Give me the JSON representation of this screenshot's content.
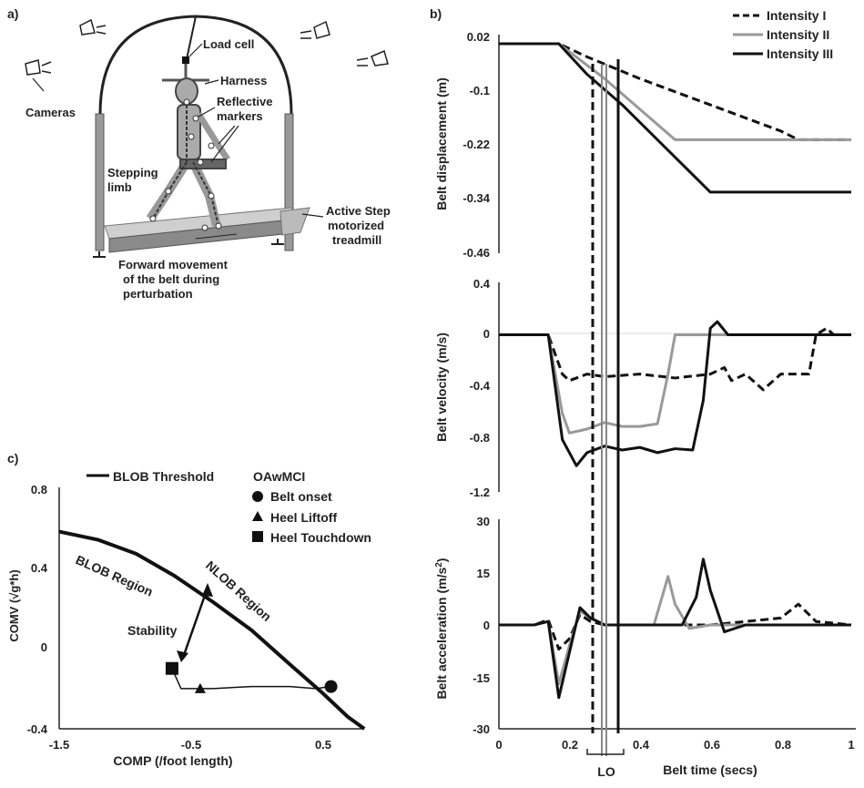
{
  "panel_labels": {
    "a": "a)",
    "b": "b)",
    "c": "c)"
  },
  "panel_a": {
    "labels": {
      "load_cell": "Load cell",
      "harness": "Harness",
      "reflective_1": "Reflective",
      "reflective_2": "markers",
      "cameras": "Cameras",
      "stepping_1": "Stepping",
      "stepping_2": "limb",
      "active_1": "Active Step",
      "active_2": "motorized",
      "active_3": "treadmill",
      "forward_1": "Forward movement",
      "forward_2": "of the belt during",
      "forward_3": "perturbation"
    },
    "icons": [
      "camera-icon",
      "camera-icon",
      "camera-icon",
      "camera-icon",
      "camera-icon",
      "harness-frame-icon",
      "human-figure-icon",
      "treadmill-icon"
    ]
  },
  "panel_b": {
    "legend": [
      "Intensity I",
      "Intensity II",
      "Intensity III"
    ],
    "x_label": "Belt time (secs)",
    "x_ticks": [
      "0",
      "0.2",
      "0.4",
      "0.6",
      "0.8",
      "1"
    ],
    "lo_label": "LO",
    "displacement": {
      "ylabel": "Belt displacement (m)",
      "ticks": [
        "0.02",
        "-0.1",
        "-0.22",
        "-0.34",
        "-0.46"
      ]
    },
    "velocity": {
      "ylabel": "Belt velocity (m/s)",
      "ticks": [
        "0.4",
        "0",
        "-0.4",
        "-0.8",
        "-1.2"
      ]
    },
    "acceleration": {
      "ylabel_main": "Belt acceleration (m/s",
      "ylabel_sup": "2",
      "ylabel_end": ")",
      "ticks": [
        "30",
        "15",
        "0",
        "-15",
        "-30"
      ]
    }
  },
  "panel_c": {
    "legend_threshold": "BLOB Threshold",
    "group_title": "OAwMCI",
    "markers": [
      "Belt onset",
      "Heel Liftoff",
      "Heel Touchdown"
    ],
    "region_blob": "BLOB Region",
    "region_nlob": "NLOB Region",
    "stability": "Stability",
    "ylabel": "COMV (√g*h)",
    "xlabel": "COMP (/foot length)",
    "y_ticks": [
      "0.8",
      "0.4",
      "0",
      "-0.4"
    ],
    "x_ticks": [
      "-1.5",
      "-0.5",
      "0.5"
    ]
  },
  "colors": {
    "intensity_1": "#111111",
    "intensity_2": "#999999",
    "intensity_3": "#111111",
    "text": "#222222"
  },
  "chart_data": [
    {
      "type": "line",
      "ylabel": "Belt displacement (m)",
      "xlim": [
        0,
        1
      ],
      "ylim": [
        -0.46,
        0.02
      ],
      "series": [
        {
          "name": "Intensity I",
          "style": "dashed",
          "x": [
            0,
            0.17,
            0.25,
            0.4,
            0.6,
            0.8,
            0.85,
            1.0
          ],
          "values": [
            0.02,
            0.02,
            -0.01,
            -0.06,
            -0.12,
            -0.18,
            -0.2,
            -0.2
          ]
        },
        {
          "name": "Intensity II",
          "style": "solid-gray",
          "x": [
            0,
            0.17,
            0.3,
            0.4,
            0.5,
            0.6,
            0.8,
            1.0
          ],
          "values": [
            0.02,
            0.02,
            -0.06,
            -0.13,
            -0.2,
            -0.2,
            -0.2,
            -0.2
          ]
        },
        {
          "name": "Intensity III",
          "style": "solid-black",
          "x": [
            0,
            0.17,
            0.25,
            0.35,
            0.5,
            0.6,
            0.8,
            1.0
          ],
          "values": [
            0.02,
            0.02,
            -0.05,
            -0.12,
            -0.24,
            -0.32,
            -0.32,
            -0.32
          ]
        }
      ]
    },
    {
      "type": "line",
      "ylabel": "Belt velocity (m/s)",
      "xlim": [
        0,
        1
      ],
      "ylim": [
        -1.2,
        0.4
      ],
      "series": [
        {
          "name": "Intensity I",
          "style": "dashed",
          "x": [
            0,
            0.14,
            0.18,
            0.2,
            0.25,
            0.3,
            0.4,
            0.5,
            0.6,
            0.64,
            0.66,
            0.7,
            0.75,
            0.8,
            0.85,
            0.88,
            0.9,
            0.93,
            0.95,
            1.0
          ],
          "values": [
            0,
            0,
            -0.3,
            -0.35,
            -0.3,
            -0.32,
            -0.3,
            -0.33,
            -0.3,
            -0.25,
            -0.35,
            -0.3,
            -0.42,
            -0.3,
            -0.3,
            -0.3,
            0,
            0.05,
            0,
            0
          ]
        },
        {
          "name": "Intensity II",
          "style": "solid-gray",
          "x": [
            0,
            0.14,
            0.18,
            0.2,
            0.25,
            0.3,
            0.35,
            0.4,
            0.45,
            0.48,
            0.5,
            0.52,
            0.55,
            0.6,
            0.8,
            1.0
          ],
          "values": [
            0,
            0,
            -0.6,
            -0.75,
            -0.72,
            -0.67,
            -0.7,
            -0.7,
            -0.68,
            -0.3,
            0,
            0,
            0,
            0,
            0,
            0
          ]
        },
        {
          "name": "Intensity III",
          "style": "solid-black",
          "x": [
            0,
            0.14,
            0.18,
            0.22,
            0.25,
            0.3,
            0.35,
            0.4,
            0.45,
            0.5,
            0.55,
            0.58,
            0.6,
            0.62,
            0.65,
            0.8,
            1.0
          ],
          "values": [
            0,
            0,
            -0.8,
            -1.0,
            -0.9,
            -0.85,
            -0.88,
            -0.86,
            -0.9,
            -0.87,
            -0.88,
            -0.5,
            0.05,
            0.1,
            0,
            0,
            0
          ]
        }
      ]
    },
    {
      "type": "line",
      "ylabel": "Belt acceleration (m/s2)",
      "xlim": [
        0,
        1
      ],
      "ylim": [
        -30,
        30
      ],
      "series": [
        {
          "name": "Intensity I",
          "style": "dashed",
          "x": [
            0,
            0.1,
            0.14,
            0.17,
            0.2,
            0.23,
            0.26,
            0.3,
            0.45,
            0.6,
            0.7,
            0.8,
            0.85,
            0.9,
            1.0
          ],
          "values": [
            0,
            0,
            1.5,
            -7,
            -4,
            3,
            1,
            0,
            0,
            0,
            1,
            2,
            6,
            1,
            0
          ]
        },
        {
          "name": "Intensity II",
          "style": "solid-gray",
          "x": [
            0,
            0.1,
            0.14,
            0.17,
            0.2,
            0.23,
            0.26,
            0.3,
            0.44,
            0.48,
            0.5,
            0.54,
            0.6,
            0.7,
            1.0
          ],
          "values": [
            0,
            0,
            1,
            -17,
            -6,
            4,
            2,
            0,
            0,
            14,
            6,
            -1,
            0,
            0,
            0
          ]
        },
        {
          "name": "Intensity III",
          "style": "solid-black",
          "x": [
            0,
            0.1,
            0.14,
            0.17,
            0.2,
            0.23,
            0.26,
            0.3,
            0.52,
            0.56,
            0.58,
            0.6,
            0.64,
            0.7,
            1.0
          ],
          "values": [
            0,
            0,
            1,
            -21,
            -8,
            5,
            2,
            0,
            0,
            8,
            19,
            10,
            -2,
            0,
            0
          ]
        }
      ]
    },
    {
      "type": "line",
      "title": "",
      "xlabel": "COMP (/foot length)",
      "ylabel": "COMV (√g*h)",
      "xlim": [
        -1.5,
        0.9
      ],
      "ylim": [
        -0.4,
        0.8
      ],
      "series": [
        {
          "name": "BLOB Threshold",
          "x": [
            -1.5,
            -1.2,
            -0.9,
            -0.6,
            -0.3,
            0.0,
            0.3,
            0.55,
            0.75,
            0.88
          ],
          "values": [
            0.58,
            0.54,
            0.47,
            0.36,
            0.23,
            0.09,
            -0.08,
            -0.22,
            -0.34,
            -0.4
          ]
        },
        {
          "name": "OAwMCI",
          "x": [
            -0.62,
            -0.55,
            -0.4,
            -0.3,
            0.0,
            0.3,
            0.5,
            0.62
          ],
          "values": [
            -0.1,
            -0.2,
            -0.2,
            -0.2,
            -0.19,
            -0.19,
            -0.2,
            -0.19
          ]
        }
      ],
      "markers": [
        {
          "label": "Belt onset",
          "shape": "circle",
          "x": 0.62,
          "y": -0.19
        },
        {
          "label": "Heel Liftoff",
          "shape": "triangle",
          "x": -0.4,
          "y": -0.2
        },
        {
          "label": "Heel Touchdown",
          "shape": "square",
          "x": -0.62,
          "y": -0.1
        }
      ]
    }
  ]
}
